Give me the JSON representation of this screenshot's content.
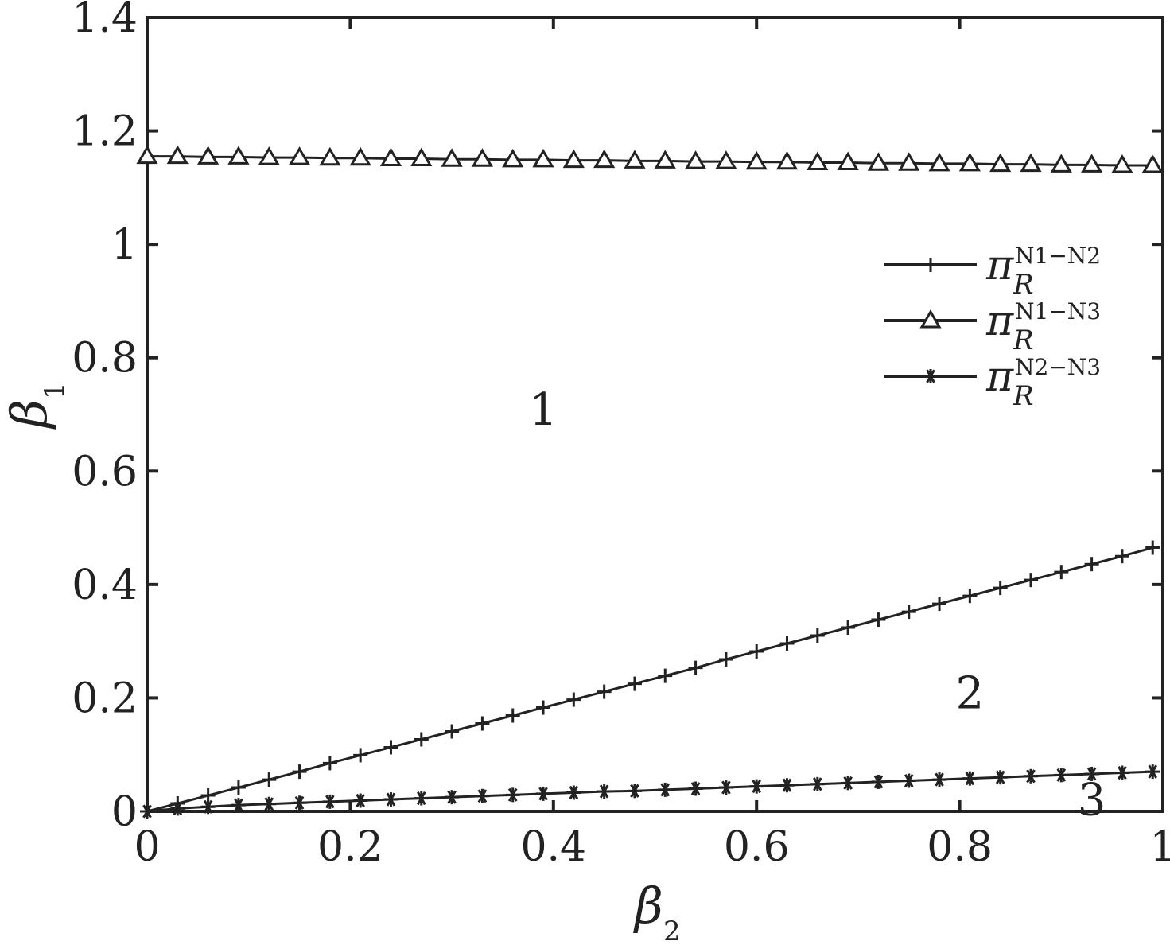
{
  "chart_data": {
    "type": "line",
    "title": "",
    "xlabel": {
      "symbol": "β",
      "subscript": "2"
    },
    "ylabel": {
      "symbol": "β",
      "subscript": "1"
    },
    "xlim": [
      0,
      1
    ],
    "ylim": [
      0,
      1.4
    ],
    "xticks": [
      "0",
      "0.2",
      "0.4",
      "0.6",
      "0.8",
      "1"
    ],
    "yticks": [
      "0",
      "0.2",
      "0.4",
      "0.6",
      "0.8",
      "1",
      "1.2",
      "1.4"
    ],
    "grid": false,
    "legend_position": "upper-right",
    "series": [
      {
        "name": {
          "symbol": "π",
          "superscript": "N1−N2",
          "subscript": "R"
        },
        "marker": "plus",
        "x": [
          0,
          0.03,
          0.06,
          0.09,
          0.12,
          0.15,
          0.18,
          0.21,
          0.24,
          0.27,
          0.3,
          0.33,
          0.36,
          0.39,
          0.42,
          0.45,
          0.48,
          0.51,
          0.54,
          0.57,
          0.6,
          0.63,
          0.66,
          0.69,
          0.72,
          0.75,
          0.78,
          0.81,
          0.84,
          0.87,
          0.9,
          0.93,
          0.96,
          0.99
        ],
        "y": [
          0,
          0.014,
          0.028,
          0.042,
          0.056,
          0.07,
          0.085,
          0.099,
          0.113,
          0.127,
          0.141,
          0.155,
          0.169,
          0.183,
          0.197,
          0.211,
          0.225,
          0.239,
          0.253,
          0.268,
          0.282,
          0.296,
          0.31,
          0.324,
          0.338,
          0.352,
          0.366,
          0.38,
          0.394,
          0.408,
          0.422,
          0.436,
          0.45,
          0.465
        ]
      },
      {
        "name": {
          "symbol": "π",
          "superscript": "N1−N3",
          "subscript": "R"
        },
        "marker": "triangle",
        "x": [
          0,
          0.03,
          0.06,
          0.09,
          0.12,
          0.15,
          0.18,
          0.21,
          0.24,
          0.27,
          0.3,
          0.33,
          0.36,
          0.39,
          0.42,
          0.45,
          0.48,
          0.51,
          0.54,
          0.57,
          0.6,
          0.63,
          0.66,
          0.69,
          0.72,
          0.75,
          0.78,
          0.81,
          0.84,
          0.87,
          0.9,
          0.93,
          0.96,
          0.99
        ],
        "y": [
          1.155,
          1.155,
          1.154,
          1.154,
          1.153,
          1.153,
          1.152,
          1.152,
          1.151,
          1.151,
          1.15,
          1.15,
          1.149,
          1.149,
          1.148,
          1.148,
          1.147,
          1.147,
          1.146,
          1.146,
          1.145,
          1.145,
          1.144,
          1.144,
          1.143,
          1.143,
          1.142,
          1.142,
          1.141,
          1.141,
          1.14,
          1.14,
          1.139,
          1.139
        ]
      },
      {
        "name": {
          "symbol": "π",
          "superscript": "N2−N3",
          "subscript": "R"
        },
        "marker": "star",
        "x": [
          0,
          0.03,
          0.06,
          0.09,
          0.12,
          0.15,
          0.18,
          0.21,
          0.24,
          0.27,
          0.3,
          0.33,
          0.36,
          0.39,
          0.42,
          0.45,
          0.48,
          0.51,
          0.54,
          0.57,
          0.6,
          0.63,
          0.66,
          0.69,
          0.72,
          0.75,
          0.78,
          0.81,
          0.84,
          0.87,
          0.9,
          0.93,
          0.96,
          0.99
        ],
        "y": [
          0,
          0.005,
          0.008,
          0.011,
          0.013,
          0.015,
          0.017,
          0.019,
          0.021,
          0.023,
          0.025,
          0.027,
          0.029,
          0.031,
          0.033,
          0.035,
          0.036,
          0.038,
          0.04,
          0.042,
          0.044,
          0.046,
          0.048,
          0.05,
          0.052,
          0.054,
          0.056,
          0.058,
          0.06,
          0.062,
          0.064,
          0.066,
          0.068,
          0.07
        ]
      }
    ],
    "annotations": [
      {
        "text": "1",
        "x": 0.39,
        "y": 0.71
      },
      {
        "text": "2",
        "x": 0.81,
        "y": 0.21
      },
      {
        "text": "3",
        "x": 0.93,
        "y": 0.022
      }
    ]
  }
}
